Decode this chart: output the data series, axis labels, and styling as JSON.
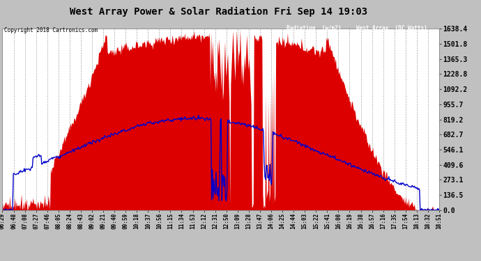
{
  "title": "West Array Power & Solar Radiation Fri Sep 14 19:03",
  "copyright": "Copyright 2018 Cartronics.com",
  "legend_labels": [
    "Radiation (w/m2)",
    "West Array  (DC Watts)"
  ],
  "legend_colors": [
    "#0000cc",
    "#cc0000"
  ],
  "y_max": 1638.4,
  "y_ticks": [
    0.0,
    136.5,
    273.1,
    409.6,
    546.1,
    682.7,
    819.2,
    955.7,
    1092.2,
    1228.8,
    1365.3,
    1501.8,
    1638.4
  ],
  "background_color": "#c0c0c0",
  "plot_bg_color": "#ffffff",
  "grid_color": "#aaaaaa",
  "fill_color": "#dd0000",
  "line_color": "#0000cc",
  "title_color": "#000000",
  "tick_label_color": "#000000",
  "x_tick_labels": [
    "06:29",
    "06:48",
    "07:08",
    "07:27",
    "07:46",
    "08:05",
    "08:24",
    "08:43",
    "09:02",
    "09:21",
    "09:40",
    "09:59",
    "10:18",
    "10:37",
    "10:56",
    "11:15",
    "11:34",
    "11:53",
    "12:12",
    "12:31",
    "12:50",
    "13:09",
    "13:28",
    "13:47",
    "14:06",
    "14:25",
    "14:44",
    "15:03",
    "15:22",
    "15:41",
    "16:00",
    "16:19",
    "16:38",
    "16:57",
    "17:16",
    "17:35",
    "17:54",
    "18:13",
    "18:32",
    "18:51"
  ],
  "num_points": 600
}
